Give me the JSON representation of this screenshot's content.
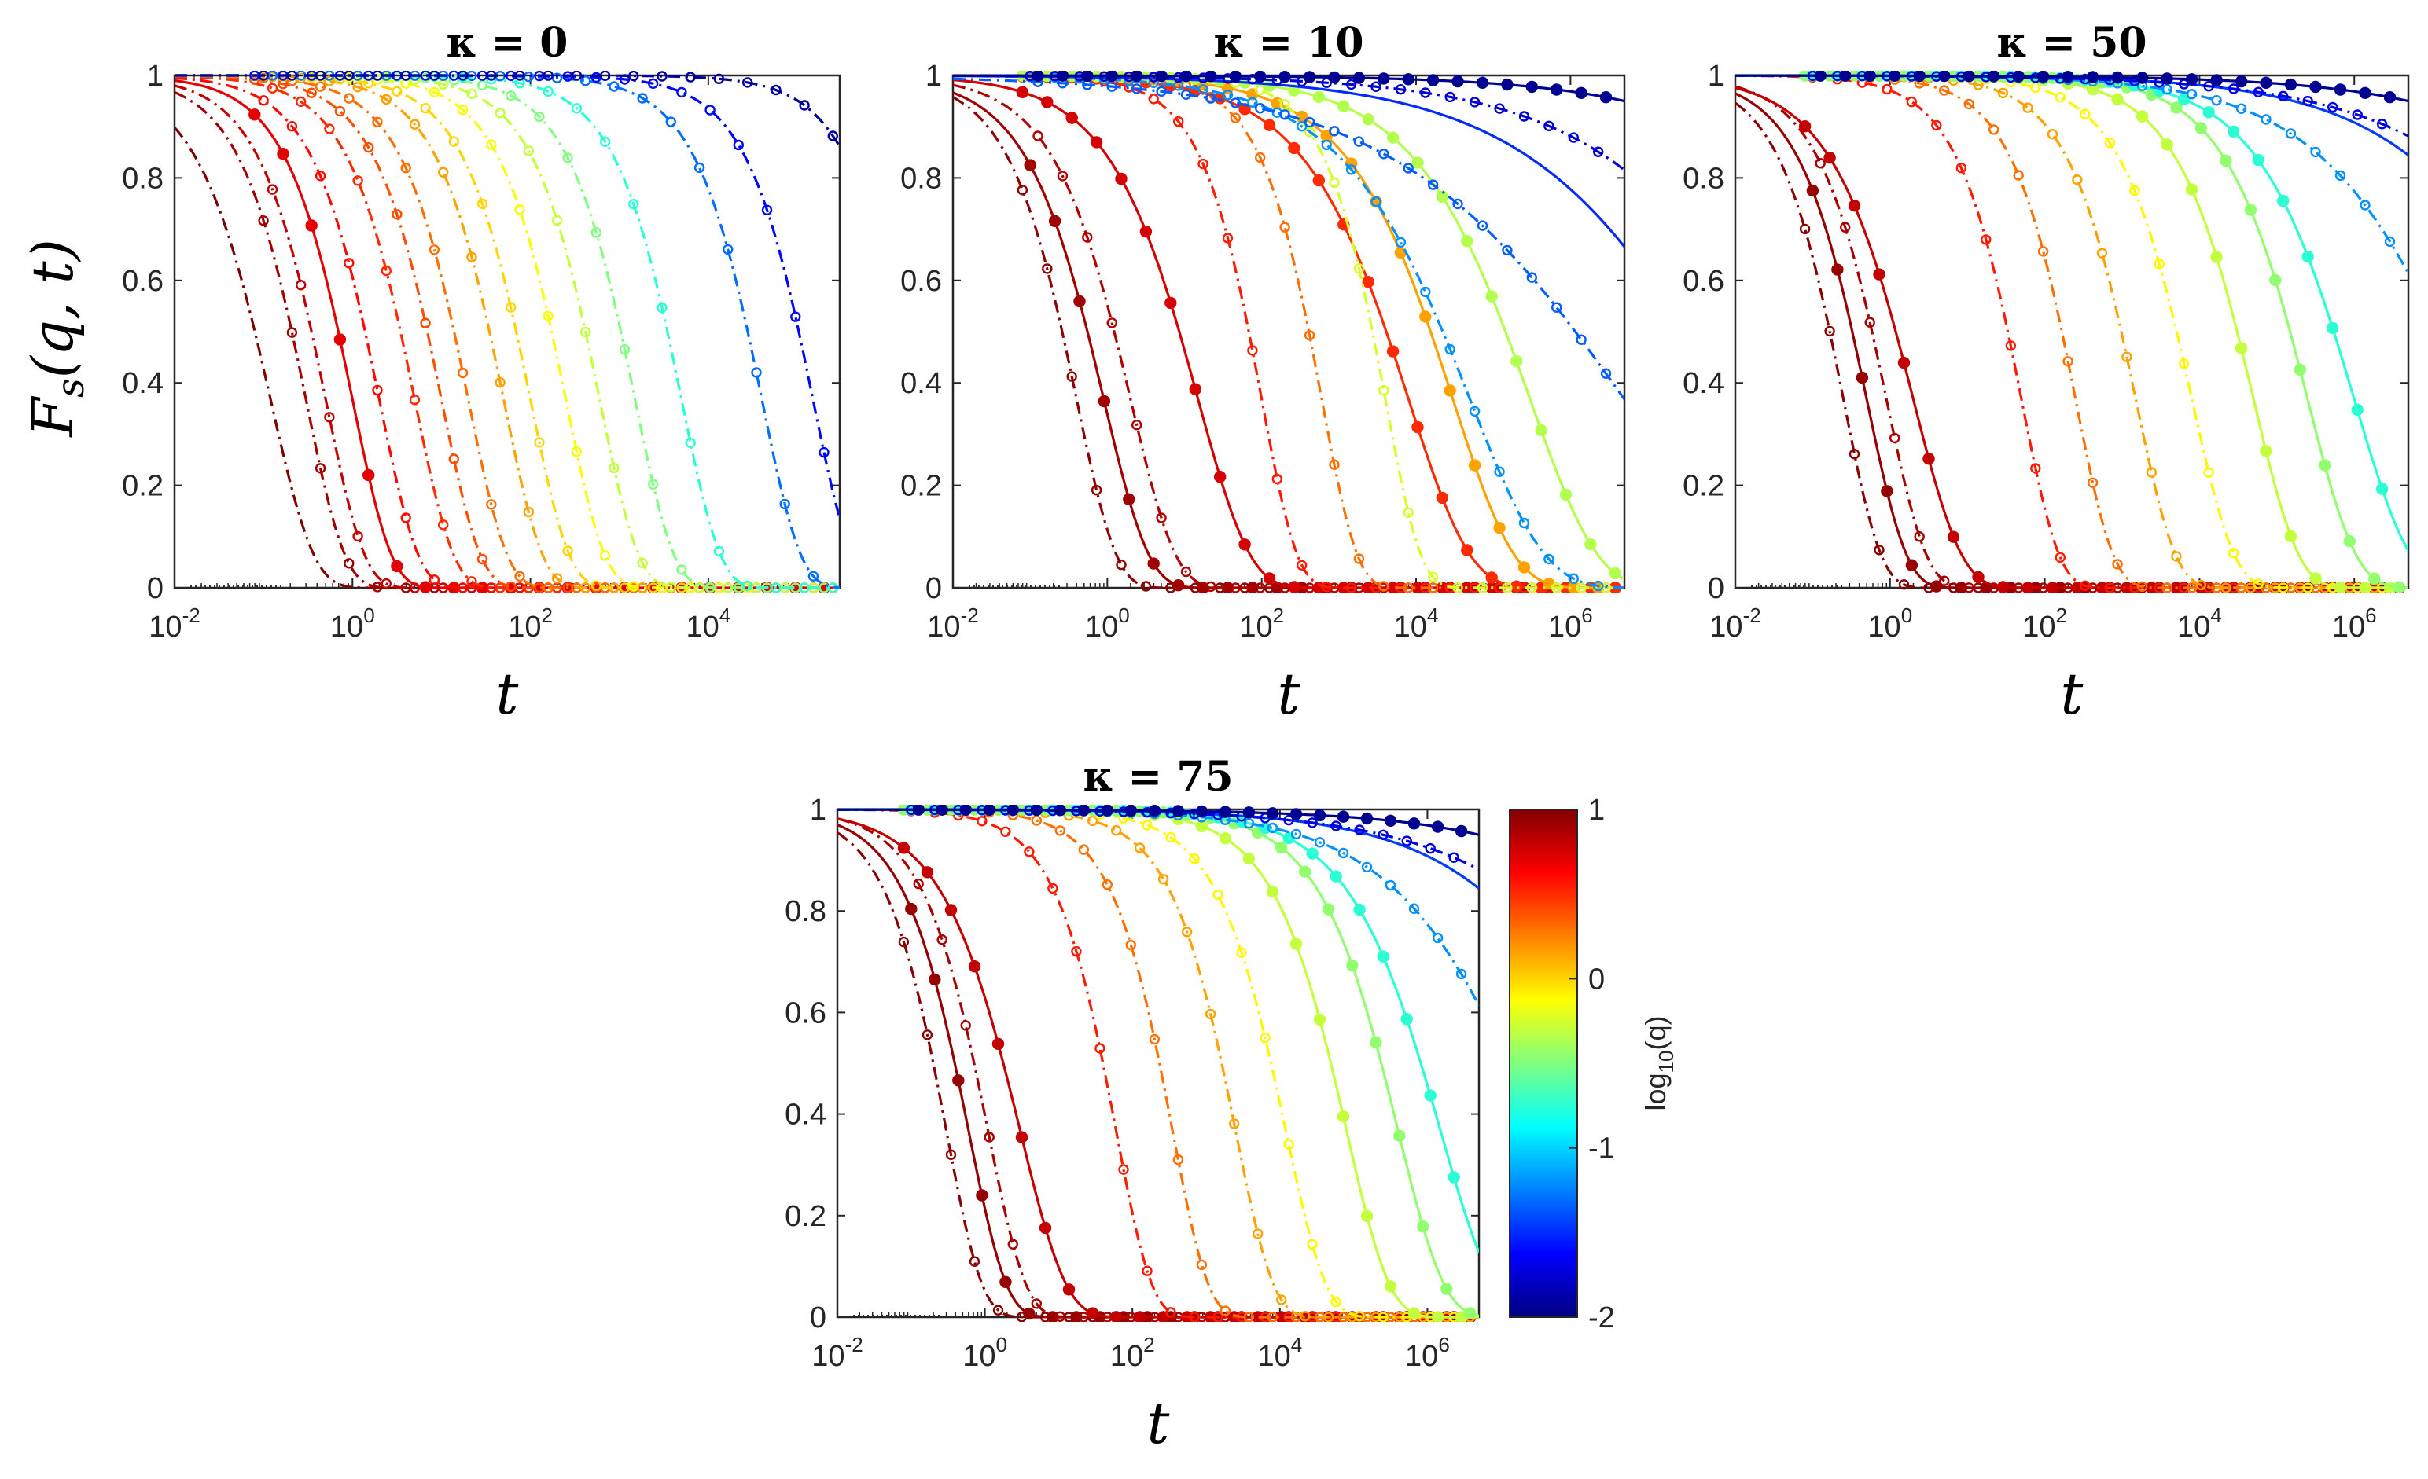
{
  "figure": {
    "y_axis_label": "F_s(q,t)",
    "y_axis_label_parts": {
      "main": "F",
      "sub": "s",
      "args": "(q, t)"
    },
    "colorbar": {
      "label": "log10(q)",
      "label_parts": {
        "main": "log",
        "sub": "10",
        "args": "(q)"
      },
      "range": [
        -2,
        1
      ],
      "ticks": [
        "1",
        "0",
        "-1",
        "-2"
      ],
      "colormap": "jet"
    }
  },
  "chart_data": [
    {
      "type": "line",
      "title": "κ = 0",
      "xlabel": "t",
      "ylabel": "F_s(q,t)",
      "xscale": "log",
      "xlim": [
        0.01,
        300000
      ],
      "ylim": [
        0,
        1
      ],
      "xticks": [
        {
          "base": "10",
          "exp": "-2"
        },
        {
          "base": "10",
          "exp": "0"
        },
        {
          "base": "10",
          "exp": "2"
        },
        {
          "base": "10",
          "exp": "4"
        }
      ],
      "yticks": [
        "0",
        "0.2",
        "0.4",
        "0.6",
        "0.8",
        "1"
      ],
      "series": [
        {
          "log10q": 1.0,
          "tau": 0.12,
          "beta": 0.9,
          "style": "dashdot",
          "markers": false
        },
        {
          "log10q": 0.9,
          "tau": 0.3,
          "beta": 1.0,
          "style": "dashdot",
          "markers": true
        },
        {
          "log10q": 0.8,
          "tau": 0.5,
          "beta": 1.0,
          "style": "dashdot",
          "markers": true
        },
        {
          "log10q": 0.7,
          "tau": 1.0,
          "beta": 1.0,
          "style": "solid",
          "markers": true
        },
        {
          "log10q": 0.6,
          "tau": 2.0,
          "beta": 1.0,
          "style": "dashdot",
          "markers": true
        },
        {
          "log10q": 0.5,
          "tau": 5.0,
          "beta": 1.0,
          "style": "dashdot",
          "markers": true
        },
        {
          "log10q": 0.4,
          "tau": 10,
          "beta": 1.0,
          "style": "dashdot",
          "markers": true
        },
        {
          "log10q": 0.3,
          "tau": 20,
          "beta": 1.0,
          "style": "dashdot",
          "markers": true
        },
        {
          "log10q": 0.15,
          "tau": 50,
          "beta": 1.0,
          "style": "dashdot",
          "markers": true
        },
        {
          "log10q": 0.0,
          "tau": 100,
          "beta": 1.0,
          "style": "dashdot",
          "markers": true
        },
        {
          "log10q": -0.15,
          "tau": 250,
          "beta": 1.0,
          "style": "dashdot",
          "markers": true
        },
        {
          "log10q": -0.3,
          "tau": 600,
          "beta": 1.0,
          "style": "dashdot",
          "markers": true
        },
        {
          "log10q": -0.5,
          "tau": 1500,
          "beta": 1.0,
          "style": "dashdot",
          "markers": true
        },
        {
          "log10q": -0.75,
          "tau": 5000,
          "beta": 1.0,
          "style": "dashdot",
          "markers": true
        },
        {
          "log10q": -1.3,
          "tau": 40000,
          "beta": 1.0,
          "style": "dashdot",
          "markers": true
        },
        {
          "log10q": -1.6,
          "tau": 150000,
          "beta": 1.0,
          "style": "dashdot",
          "markers": true
        },
        {
          "log10q": -1.9,
          "tau": 2000000,
          "beta": 1.0,
          "style": "dashdot",
          "markers": true
        }
      ]
    },
    {
      "type": "line",
      "title": "κ = 10",
      "xlabel": "t",
      "ylabel": "",
      "xscale": "log",
      "xlim": [
        0.01,
        5000000
      ],
      "ylim": [
        0,
        1
      ],
      "xticks": [
        {
          "base": "10",
          "exp": "-2"
        },
        {
          "base": "10",
          "exp": "0"
        },
        {
          "base": "10",
          "exp": "2"
        },
        {
          "base": "10",
          "exp": "4"
        },
        {
          "base": "10",
          "exp": "6"
        }
      ],
      "yticks": [
        "0",
        "0.2",
        "0.4",
        "0.6",
        "0.8",
        "1"
      ],
      "series": [
        {
          "log10q": 0.95,
          "tau": 0.4,
          "beta": 0.85,
          "style": "dashdot",
          "markers": true
        },
        {
          "log10q": 0.9,
          "tau": 0.9,
          "beta": 0.75,
          "style": "solid",
          "markers": true
        },
        {
          "log10q": 0.85,
          "tau": 2.0,
          "beta": 0.75,
          "style": "dashdot",
          "markers": true
        },
        {
          "log10q": 0.75,
          "tau": 15,
          "beta": 0.65,
          "style": "solid",
          "markers": true
        },
        {
          "log10q": 0.55,
          "tau": 100,
          "beta": 0.95,
          "style": "dashdot",
          "markers": true
        },
        {
          "log10q": 0.3,
          "tau": 600,
          "beta": 0.95,
          "style": "dashdot",
          "markers": true
        },
        {
          "log10q": 0.5,
          "tau": 8000,
          "beta": 0.55,
          "style": "solid",
          "markers": true
        },
        {
          "log10q": 0.15,
          "tau": 30000,
          "beta": 0.55,
          "style": "solid",
          "markers": true
        },
        {
          "log10q": -0.25,
          "tau": 4000,
          "beta": 0.95,
          "style": "dashdot",
          "markers": true
        },
        {
          "log10q": -0.35,
          "tau": 300000,
          "beta": 0.5,
          "style": "solid",
          "markers": true
        },
        {
          "log10q": -1.2,
          "tau": 50000,
          "beta": 0.45,
          "style": "dashdot",
          "markers": true
        },
        {
          "log10q": -1.35,
          "tau": 5000000,
          "beta": 0.25,
          "style": "dashdot",
          "markers": true
        },
        {
          "log10q": -1.5,
          "tau": 100000000,
          "beta": 0.3,
          "style": "solid",
          "markers": false
        },
        {
          "log10q": -1.75,
          "tau": 1000000000,
          "beta": 0.3,
          "style": "dashdot",
          "markers": true
        },
        {
          "log10q": -1.95,
          "tau": 100000000000,
          "beta": 0.3,
          "style": "solid",
          "markers": true
        }
      ]
    },
    {
      "type": "line",
      "title": "κ = 50",
      "xlabel": "t",
      "ylabel": "",
      "xscale": "log",
      "xlim": [
        0.01,
        5000000
      ],
      "ylim": [
        0,
        1
      ],
      "xticks": [
        {
          "base": "10",
          "exp": "-2"
        },
        {
          "base": "10",
          "exp": "0"
        },
        {
          "base": "10",
          "exp": "2"
        },
        {
          "base": "10",
          "exp": "4"
        },
        {
          "base": "10",
          "exp": "6"
        }
      ],
      "yticks": [
        "0",
        "0.2",
        "0.4",
        "0.6",
        "0.8",
        "1"
      ],
      "series": [
        {
          "log10q": 0.97,
          "tau": 0.25,
          "beta": 0.9,
          "style": "dashdot",
          "markers": true
        },
        {
          "log10q": 0.93,
          "tau": 0.5,
          "beta": 0.85,
          "style": "solid",
          "markers": true
        },
        {
          "log10q": 0.88,
          "tau": 0.9,
          "beta": 0.85,
          "style": "dashdot",
          "markers": true
        },
        {
          "log10q": 0.8,
          "tau": 2.0,
          "beta": 0.7,
          "style": "solid",
          "markers": true
        },
        {
          "log10q": 0.55,
          "tau": 50,
          "beta": 0.9,
          "style": "dashdot",
          "markers": true
        },
        {
          "log10q": 0.3,
          "tau": 250,
          "beta": 0.9,
          "style": "dashdot",
          "markers": true
        },
        {
          "log10q": 0.15,
          "tau": 1500,
          "beta": 0.85,
          "style": "dashdot",
          "markers": true
        },
        {
          "log10q": -0.1,
          "tau": 8000,
          "beta": 0.8,
          "style": "dashdot",
          "markers": true
        },
        {
          "log10q": -0.3,
          "tau": 50000,
          "beta": 0.75,
          "style": "solid",
          "markers": true
        },
        {
          "log10q": -0.45,
          "tau": 250000,
          "beta": 0.7,
          "style": "solid",
          "markers": true
        },
        {
          "log10q": -0.75,
          "tau": 1000000,
          "beta": 0.6,
          "style": "solid",
          "markers": true
        },
        {
          "log10q": -1.2,
          "tau": 30000000,
          "beta": 0.4,
          "style": "dashdot",
          "markers": true
        },
        {
          "log10q": -1.45,
          "tau": 800000000,
          "beta": 0.35,
          "style": "solid",
          "markers": false
        },
        {
          "log10q": -1.7,
          "tau": 5000000000,
          "beta": 0.3,
          "style": "dashdot",
          "markers": true
        },
        {
          "log10q": -1.95,
          "tau": 100000000000,
          "beta": 0.3,
          "style": "solid",
          "markers": true
        }
      ]
    },
    {
      "type": "line",
      "title": "κ = 75",
      "xlabel": "t",
      "ylabel": "",
      "xscale": "log",
      "xlim": [
        0.01,
        5000000
      ],
      "ylim": [
        0,
        1
      ],
      "xticks": [
        {
          "base": "10",
          "exp": "-2"
        },
        {
          "base": "10",
          "exp": "0"
        },
        {
          "base": "10",
          "exp": "2"
        },
        {
          "base": "10",
          "exp": "4"
        },
        {
          "base": "10",
          "exp": "6"
        }
      ],
      "yticks": [
        "0",
        "0.2",
        "0.4",
        "0.6",
        "0.8",
        "1"
      ],
      "series": [
        {
          "log10q": 0.97,
          "tau": 0.3,
          "beta": 0.9,
          "style": "dashdot",
          "markers": true
        },
        {
          "log10q": 0.93,
          "tau": 0.6,
          "beta": 0.85,
          "style": "solid",
          "markers": true
        },
        {
          "log10q": 0.88,
          "tau": 1.1,
          "beta": 0.85,
          "style": "dashdot",
          "markers": true
        },
        {
          "log10q": 0.8,
          "tau": 3.0,
          "beta": 0.7,
          "style": "solid",
          "markers": true
        },
        {
          "log10q": 0.55,
          "tau": 60,
          "beta": 0.9,
          "style": "dashdot",
          "markers": true
        },
        {
          "log10q": 0.3,
          "tau": 350,
          "beta": 0.9,
          "style": "dashdot",
          "markers": true
        },
        {
          "log10q": 0.15,
          "tau": 2500,
          "beta": 0.85,
          "style": "dashdot",
          "markers": true
        },
        {
          "log10q": -0.1,
          "tau": 12000,
          "beta": 0.8,
          "style": "dashdot",
          "markers": true
        },
        {
          "log10q": -0.3,
          "tau": 80000,
          "beta": 0.75,
          "style": "solid",
          "markers": true
        },
        {
          "log10q": -0.45,
          "tau": 400000,
          "beta": 0.7,
          "style": "solid",
          "markers": true
        },
        {
          "log10q": -0.75,
          "tau": 1500000,
          "beta": 0.6,
          "style": "solid",
          "markers": true
        },
        {
          "log10q": -1.2,
          "tau": 30000000,
          "beta": 0.4,
          "style": "dashdot",
          "markers": true
        },
        {
          "log10q": -1.45,
          "tau": 800000000,
          "beta": 0.35,
          "style": "solid",
          "markers": false
        },
        {
          "log10q": -1.7,
          "tau": 5000000000,
          "beta": 0.3,
          "style": "dashdot",
          "markers": true
        },
        {
          "log10q": -1.95,
          "tau": 100000000000,
          "beta": 0.3,
          "style": "solid",
          "markers": true
        }
      ]
    }
  ]
}
